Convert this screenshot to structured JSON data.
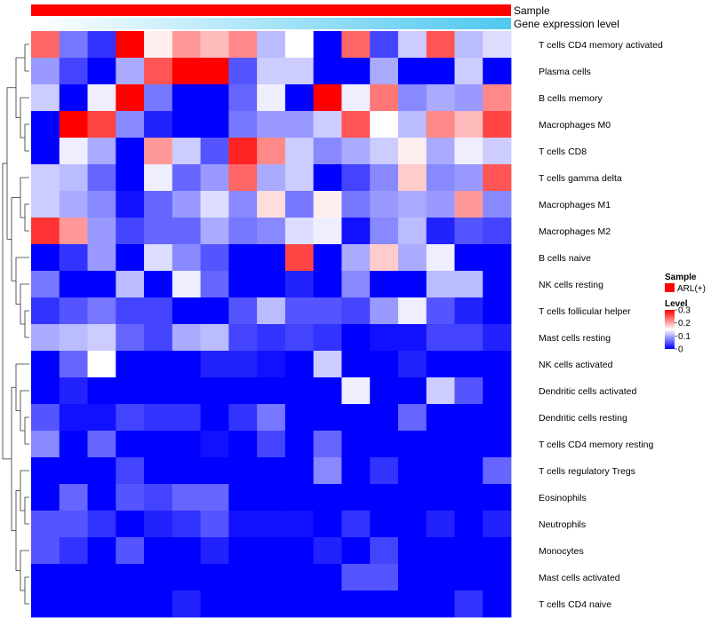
{
  "chart_data": {
    "type": "heatmap",
    "title": "",
    "annotation_tracks": [
      {
        "name": "Sample",
        "color_start": "#ff0000",
        "color_end": "#ff0000"
      },
      {
        "name": "Gene expression level",
        "color_start": "#ffffff",
        "color_end": "#4fc8f0"
      }
    ],
    "rows": [
      "T cells CD4 memory activated",
      "Plasma cells",
      "B cells memory",
      "Macrophages M0",
      "T cells CD8",
      "T cells gamma delta",
      "Macrophages M1",
      "Macrophages M2",
      "B cells naive",
      "NK cells resting",
      "T cells follicular helper",
      "Mast cells resting",
      "NK cells activated",
      "Dendritic cells activated",
      "Dendritic cells resting",
      "T cells CD4 memory resting",
      "T cells regulatory  Tregs",
      "Eosinophils",
      "Neutrophils",
      "Monocytes",
      "Mast cells activated",
      "T cells CD4 naive"
    ],
    "n_columns": 17,
    "values": [
      [
        0.24,
        0.07,
        0.03,
        0.31,
        0.16,
        0.21,
        0.19,
        0.22,
        0.11,
        0.15,
        0.0,
        0.24,
        0.04,
        0.12,
        0.25,
        0.11,
        0.13
      ],
      [
        0.09,
        0.04,
        0.0,
        0.1,
        0.25,
        0.3,
        0.31,
        0.05,
        0.12,
        0.12,
        0.0,
        0.0,
        0.1,
        0.0,
        0.0,
        0.12,
        0.0
      ],
      [
        0.12,
        0.0,
        0.14,
        0.31,
        0.07,
        0.0,
        0.0,
        0.06,
        0.14,
        0.0,
        0.31,
        0.14,
        0.23,
        0.08,
        0.1,
        0.09,
        0.22
      ],
      [
        0.0,
        0.31,
        0.26,
        0.08,
        0.02,
        0.0,
        0.0,
        0.07,
        0.09,
        0.09,
        0.12,
        0.25,
        0.15,
        0.11,
        0.22,
        0.19,
        0.26
      ],
      [
        0.0,
        0.14,
        0.1,
        0.0,
        0.21,
        0.12,
        0.05,
        0.28,
        0.22,
        0.12,
        0.08,
        0.1,
        0.12,
        0.16,
        0.1,
        0.14,
        0.12
      ],
      [
        0.12,
        0.11,
        0.06,
        0.0,
        0.14,
        0.06,
        0.09,
        0.24,
        0.1,
        0.12,
        0.0,
        0.04,
        0.08,
        0.18,
        0.08,
        0.09,
        0.25
      ],
      [
        0.12,
        0.1,
        0.08,
        0.01,
        0.06,
        0.09,
        0.13,
        0.08,
        0.17,
        0.07,
        0.16,
        0.07,
        0.09,
        0.1,
        0.09,
        0.21,
        0.08
      ],
      [
        0.27,
        0.21,
        0.09,
        0.04,
        0.06,
        0.06,
        0.1,
        0.07,
        0.08,
        0.13,
        0.14,
        0.01,
        0.08,
        0.11,
        0.02,
        0.05,
        0.04
      ],
      [
        0.0,
        0.03,
        0.09,
        0.0,
        0.13,
        0.08,
        0.05,
        0.0,
        0.0,
        0.26,
        0.0,
        0.1,
        0.18,
        0.1,
        0.14,
        0.0,
        0.0
      ],
      [
        0.07,
        0.0,
        0.0,
        0.11,
        0.0,
        0.14,
        0.06,
        0.0,
        0.0,
        0.02,
        0.0,
        0.08,
        0.0,
        0.0,
        0.11,
        0.11,
        0.0
      ],
      [
        0.03,
        0.05,
        0.07,
        0.04,
        0.04,
        0.0,
        0.0,
        0.05,
        0.11,
        0.05,
        0.05,
        0.04,
        0.09,
        0.14,
        0.05,
        0.02,
        0.0
      ],
      [
        0.1,
        0.11,
        0.12,
        0.06,
        0.04,
        0.1,
        0.11,
        0.04,
        0.03,
        0.04,
        0.03,
        0.0,
        0.01,
        0.01,
        0.04,
        0.04,
        0.02
      ],
      [
        0.0,
        0.06,
        0.15,
        0.0,
        0.0,
        0.0,
        0.02,
        0.02,
        0.01,
        0.0,
        0.12,
        0.0,
        0.0,
        0.02,
        0.0,
        0.0,
        0.0
      ],
      [
        0.0,
        0.02,
        0.0,
        0.0,
        0.0,
        0.0,
        0.0,
        0.0,
        0.0,
        0.0,
        0.0,
        0.14,
        0.0,
        0.0,
        0.12,
        0.05,
        0.0
      ],
      [
        0.05,
        0.01,
        0.01,
        0.04,
        0.03,
        0.03,
        0.0,
        0.03,
        0.07,
        0.0,
        0.0,
        0.0,
        0.0,
        0.06,
        0.0,
        0.0,
        0.0
      ],
      [
        0.08,
        0.0,
        0.06,
        0.0,
        0.0,
        0.0,
        0.01,
        0.0,
        0.04,
        0.0,
        0.06,
        0.0,
        0.0,
        0.0,
        0.0,
        0.0,
        0.0
      ],
      [
        0.0,
        0.0,
        0.0,
        0.04,
        0.0,
        0.0,
        0.0,
        0.0,
        0.0,
        0.0,
        0.08,
        0.0,
        0.03,
        0.0,
        0.0,
        0.0,
        0.06
      ],
      [
        0.0,
        0.06,
        0.0,
        0.05,
        0.04,
        0.06,
        0.06,
        0.0,
        0.0,
        0.0,
        0.0,
        0.0,
        0.0,
        0.0,
        0.0,
        0.0,
        0.0
      ],
      [
        0.05,
        0.05,
        0.03,
        0.0,
        0.02,
        0.03,
        0.05,
        0.01,
        0.01,
        0.01,
        0.0,
        0.03,
        0.0,
        0.0,
        0.02,
        0.0,
        0.02
      ],
      [
        0.05,
        0.03,
        0.0,
        0.05,
        0.0,
        0.0,
        0.02,
        0.0,
        0.0,
        0.0,
        0.02,
        0.0,
        0.04,
        0.0,
        0.0,
        0.0,
        0.0
      ],
      [
        0.0,
        0.0,
        0.0,
        0.0,
        0.0,
        0.0,
        0.0,
        0.0,
        0.0,
        0.0,
        0.0,
        0.05,
        0.05,
        0.0,
        0.0,
        0.0,
        0.0
      ],
      [
        0.0,
        0.0,
        0.0,
        0.0,
        0.0,
        0.02,
        0.0,
        0.0,
        0.0,
        0.0,
        0.0,
        0.0,
        0.0,
        0.0,
        0.0,
        0.03,
        0.0
      ]
    ],
    "color_scale": {
      "min": 0,
      "mid": 0.15,
      "max": 0.3,
      "low_color": "#0000ff",
      "mid_color": "#ffffff",
      "high_color": "#ff0000"
    },
    "legend": {
      "position": "right",
      "sample_title": "Sample",
      "sample_entry": "ARL(+)",
      "sample_color": "#ff0000",
      "level_title": "Level",
      "level_ticks": [
        "0.3",
        "0.2",
        "0.1",
        "0"
      ],
      "level_tick_values": [
        0.3,
        0.2,
        0.1,
        0
      ]
    },
    "dendrogram": "rows"
  }
}
